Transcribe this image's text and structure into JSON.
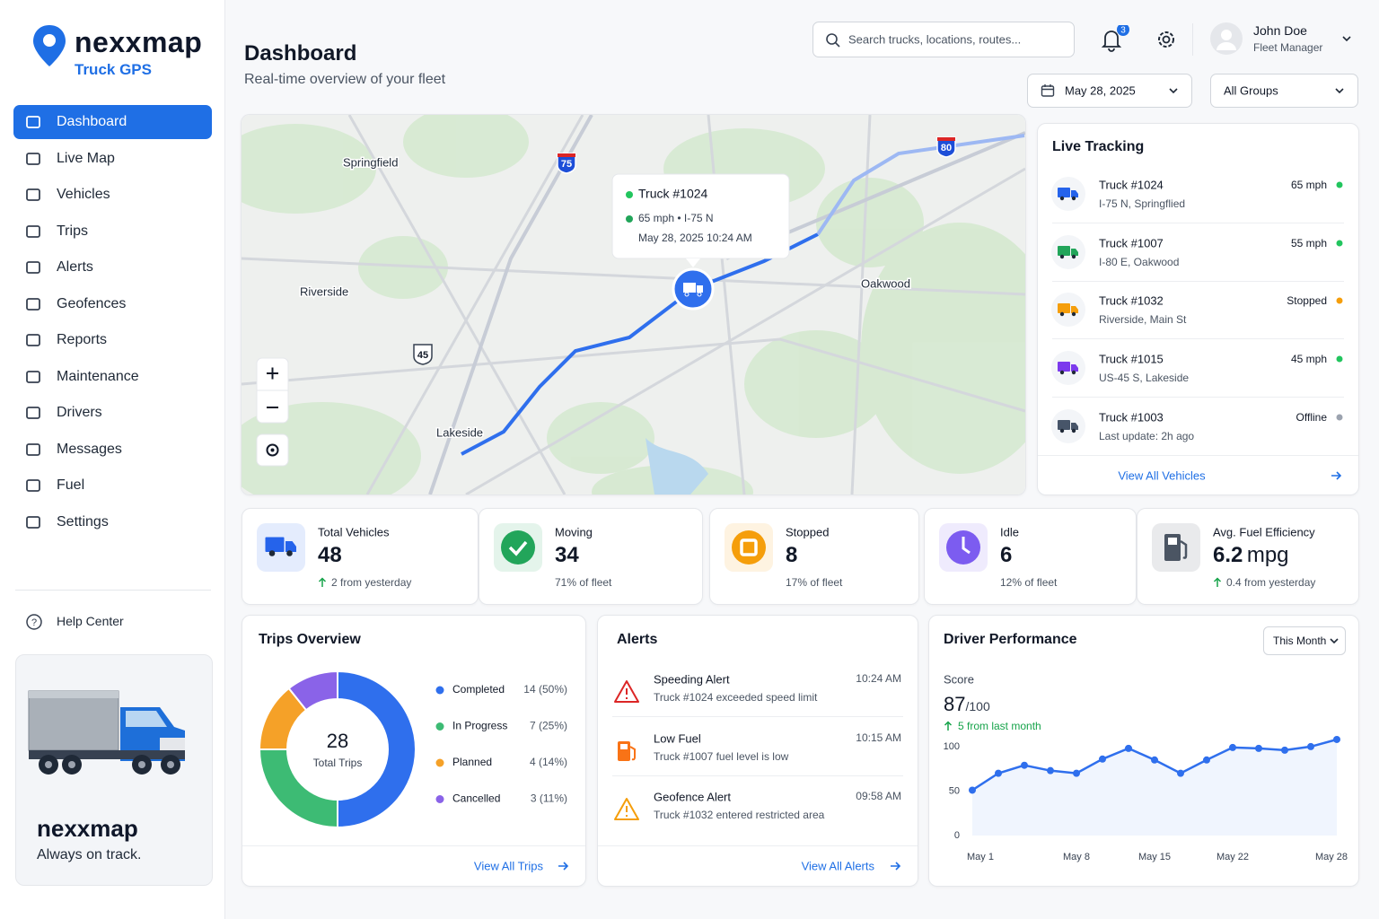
{
  "brand": {
    "name": "nexxmap",
    "tagline": "Truck GPS"
  },
  "nav": [
    "Dashboard",
    "Live Map",
    "Vehicles",
    "Trips",
    "Alerts",
    "Geofences",
    "Reports",
    "Maintenance",
    "Drivers",
    "Messages",
    "Fuel",
    "Settings"
  ],
  "help": "Help Center",
  "promo": {
    "name": "nexxmap",
    "tagline": "Always on track."
  },
  "header": {
    "title": "Dashboard",
    "subtitle": "Real-time overview of your fleet",
    "search": "Search trucks, locations, routes...",
    "notifications": 3,
    "user": "John Doe",
    "role": "Fleet Manager",
    "date": "May 28, 2025",
    "group": "All Groups"
  },
  "map": {
    "places": [
      "Springfield",
      "Riverside",
      "Oakwood",
      "Lakeside"
    ],
    "shields": [
      "75",
      "80",
      "45"
    ],
    "popup": {
      "title": "Truck #1024",
      "detail": "65 mph • I-75 N",
      "time": "May 28, 2025 10:24 AM"
    }
  },
  "live_tracking": {
    "title": "Live Tracking",
    "link": "View All Vehicles",
    "vehicles": [
      {
        "name": "Truck #1024",
        "location": "I-75 N, Springflied",
        "status": "65 mph",
        "color": "#2563eb",
        "dot": "#22c55e"
      },
      {
        "name": "Truck #1007",
        "location": "I-80 E, Oakwood",
        "status": "55 mph",
        "color": "#22a55a",
        "dot": "#22c55e"
      },
      {
        "name": "Truck #1032",
        "location": "Riverside, Main St",
        "status": "Stopped",
        "color": "#f59e0b",
        "dot": "#f59e0b"
      },
      {
        "name": "Truck #1015",
        "location": "US-45 S, Lakeside",
        "status": "45 mph",
        "color": "#7c3aed",
        "dot": "#22c55e"
      },
      {
        "name": "Truck #1003",
        "location": "Last update: 2h ago",
        "status": "Offline",
        "color": "#475569",
        "dot": "#9ca3af"
      }
    ]
  },
  "stats": [
    {
      "label": "Total Vehicles",
      "value": 48,
      "note": "2 from yesterday",
      "trend": "up",
      "icon": "truck",
      "color": "#2563eb"
    },
    {
      "label": "Moving",
      "value": 34,
      "note": "71% of fleet",
      "icon": "check",
      "color": "#22a55a"
    },
    {
      "label": "Stopped",
      "value": 8,
      "note": "17% of fleet",
      "icon": "stop",
      "color": "#f59e0b"
    },
    {
      "label": "Idle",
      "value": 6,
      "note": "12% of fleet",
      "icon": "clock",
      "color": "#7c5cf0"
    },
    {
      "label": "Avg. Fuel Efficiency",
      "value": 6.2,
      "unit": "mpg",
      "note": "0.4 from yesterday",
      "trend": "up",
      "icon": "fuel",
      "color": "#4b5563"
    }
  ],
  "alerts": {
    "title": "Alerts",
    "link": "View All Alerts",
    "items": [
      {
        "title": "Speeding Alert",
        "message": "Truck #1024 exceeded speed limit",
        "time": "10:24 AM",
        "icon": "warning",
        "color": "#dc2626"
      },
      {
        "title": "Low Fuel",
        "message": "Truck #1007 fuel level is low",
        "time": "10:15 AM",
        "icon": "fuel",
        "color": "#f97316"
      },
      {
        "title": "Geofence Alert",
        "message": "Truck #1032 entered restricted area",
        "time": "09:58 AM",
        "icon": "warning",
        "color": "#f59e0b"
      }
    ]
  },
  "chart_data": [
    {
      "type": "pie",
      "title": "Trips Overview",
      "total": 28,
      "total_label": "Total Trips",
      "link": "View All Trips",
      "categories": [
        "Completed",
        "In Progress",
        "Planned",
        "Cancelled"
      ],
      "values": [
        14,
        7,
        4,
        3
      ],
      "value_labels": [
        "14 (50%)",
        "7 (25%)",
        "4 (14%)",
        "3 (11%)"
      ],
      "colors": [
        "#2f6fed",
        "#3dbb74",
        "#f5a128",
        "#8a63e8"
      ]
    },
    {
      "type": "line",
      "title": "Driver Performance",
      "period": "This Month",
      "score_label": "Score",
      "score": 87,
      "score_suffix": "/100",
      "change": "5 from last month",
      "categories": [
        "May 1",
        null,
        null,
        null,
        "May 8",
        null,
        null,
        "May 15",
        null,
        null,
        "May 22",
        null,
        null,
        null,
        "May 28"
      ],
      "series": [
        {
          "name": "Score",
          "color": "#2f6fed",
          "values": [
            51,
            70,
            79,
            73,
            70,
            86,
            98,
            85,
            70,
            85,
            99,
            98,
            96,
            100,
            108
          ]
        }
      ],
      "ylim": [
        0,
        110
      ],
      "yticks": [
        0,
        50,
        100
      ],
      "grid": false
    }
  ]
}
